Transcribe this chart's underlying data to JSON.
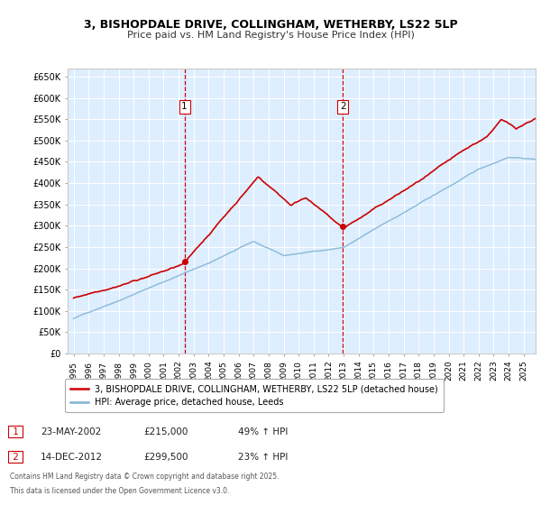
{
  "title_line1": "3, BISHOPDALE DRIVE, COLLINGHAM, WETHERBY, LS22 5LP",
  "title_line2": "Price paid vs. HM Land Registry's House Price Index (HPI)",
  "ylabel_ticks": [
    "£0",
    "£50K",
    "£100K",
    "£150K",
    "£200K",
    "£250K",
    "£300K",
    "£350K",
    "£400K",
    "£450K",
    "£500K",
    "£550K",
    "£600K",
    "£650K"
  ],
  "y_values": [
    0,
    50000,
    100000,
    150000,
    200000,
    250000,
    300000,
    350000,
    400000,
    450000,
    500000,
    550000,
    600000,
    650000
  ],
  "xlim_start": 1994.6,
  "xlim_end": 2025.8,
  "ylim_min": 0,
  "ylim_max": 670000,
  "sale1_x": 2002.39,
  "sale1_y": 215000,
  "sale1_label": "1",
  "sale2_x": 2012.96,
  "sale2_y": 299500,
  "sale2_label": "2",
  "line_color_price": "#cc0000",
  "line_color_hpi": "#7fb3d3",
  "background_color": "#ffffff",
  "plot_bg_color": "#ddeeff",
  "grid_color": "#ffffff",
  "legend_label1": "3, BISHOPDALE DRIVE, COLLINGHAM, WETHERBY, LS22 5LP (detached house)",
  "legend_label2": "HPI: Average price, detached house, Leeds",
  "footnote_line1": "Contains HM Land Registry data © Crown copyright and database right 2025.",
  "footnote_line2": "This data is licensed under the Open Government Licence v3.0.",
  "annotation1_date": "23-MAY-2002",
  "annotation1_price": "£215,000",
  "annotation1_hpi": "49% ↑ HPI",
  "annotation2_date": "14-DEC-2012",
  "annotation2_price": "£299,500",
  "annotation2_hpi": "23% ↑ HPI",
  "x_ticks": [
    1995,
    1996,
    1997,
    1998,
    1999,
    2000,
    2001,
    2002,
    2003,
    2004,
    2005,
    2006,
    2007,
    2008,
    2009,
    2010,
    2011,
    2012,
    2013,
    2014,
    2015,
    2016,
    2017,
    2018,
    2019,
    2020,
    2021,
    2022,
    2023,
    2024,
    2025
  ]
}
